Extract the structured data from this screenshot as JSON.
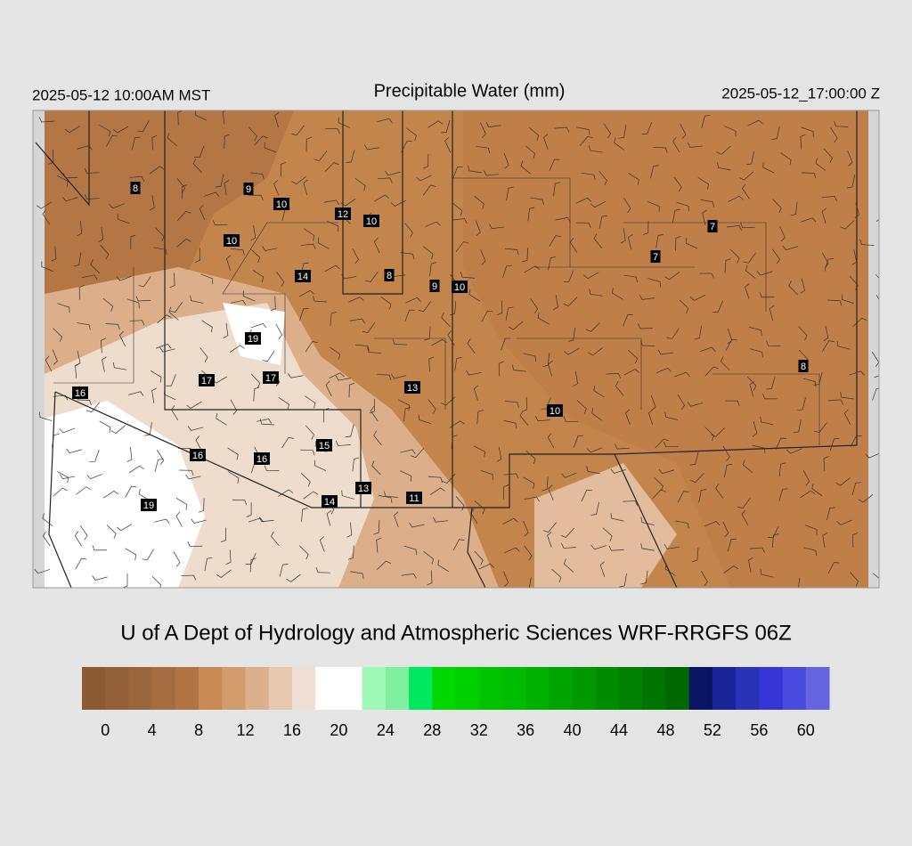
{
  "header": {
    "left": "2025-05-12 10:00AM MST",
    "title": "Precipitable Water (mm)",
    "right": "2025-05-12_17:00:00 Z"
  },
  "map": {
    "labels": [
      8,
      9,
      10,
      12,
      10,
      10,
      14,
      8,
      9,
      10,
      7,
      7,
      19,
      17,
      17,
      16,
      13,
      8,
      10,
      16,
      16,
      15,
      13,
      14,
      11,
      19
    ]
  },
  "credit": "U of A Dept of Hydrology and Atmospheric Sciences WRF-RRGFS 06Z",
  "colorbar": {
    "lim": [
      -2,
      62
    ],
    "ticks": [
      0,
      4,
      8,
      12,
      16,
      20,
      24,
      28,
      32,
      36,
      40,
      44,
      48,
      52,
      56,
      60
    ],
    "colors": [
      "#8b5a32",
      "#94603a",
      "#9c663c",
      "#a56c40",
      "#b07444",
      "#c88a52",
      "#d29c6c",
      "#dcb08c",
      "#e6c8b0",
      "#f0e0d4",
      "#ffffff",
      "#ffffff",
      "#a0f8b8",
      "#80f0a0",
      "#00e860",
      "#00d800",
      "#00d000",
      "#00c400",
      "#00bc00",
      "#00b000",
      "#00a400",
      "#009800",
      "#008c00",
      "#008000",
      "#007400",
      "#006800",
      "#0a1464",
      "#1a2498",
      "#2a32b8",
      "#3636d8",
      "#4a4ae0",
      "#6464e0"
    ]
  }
}
